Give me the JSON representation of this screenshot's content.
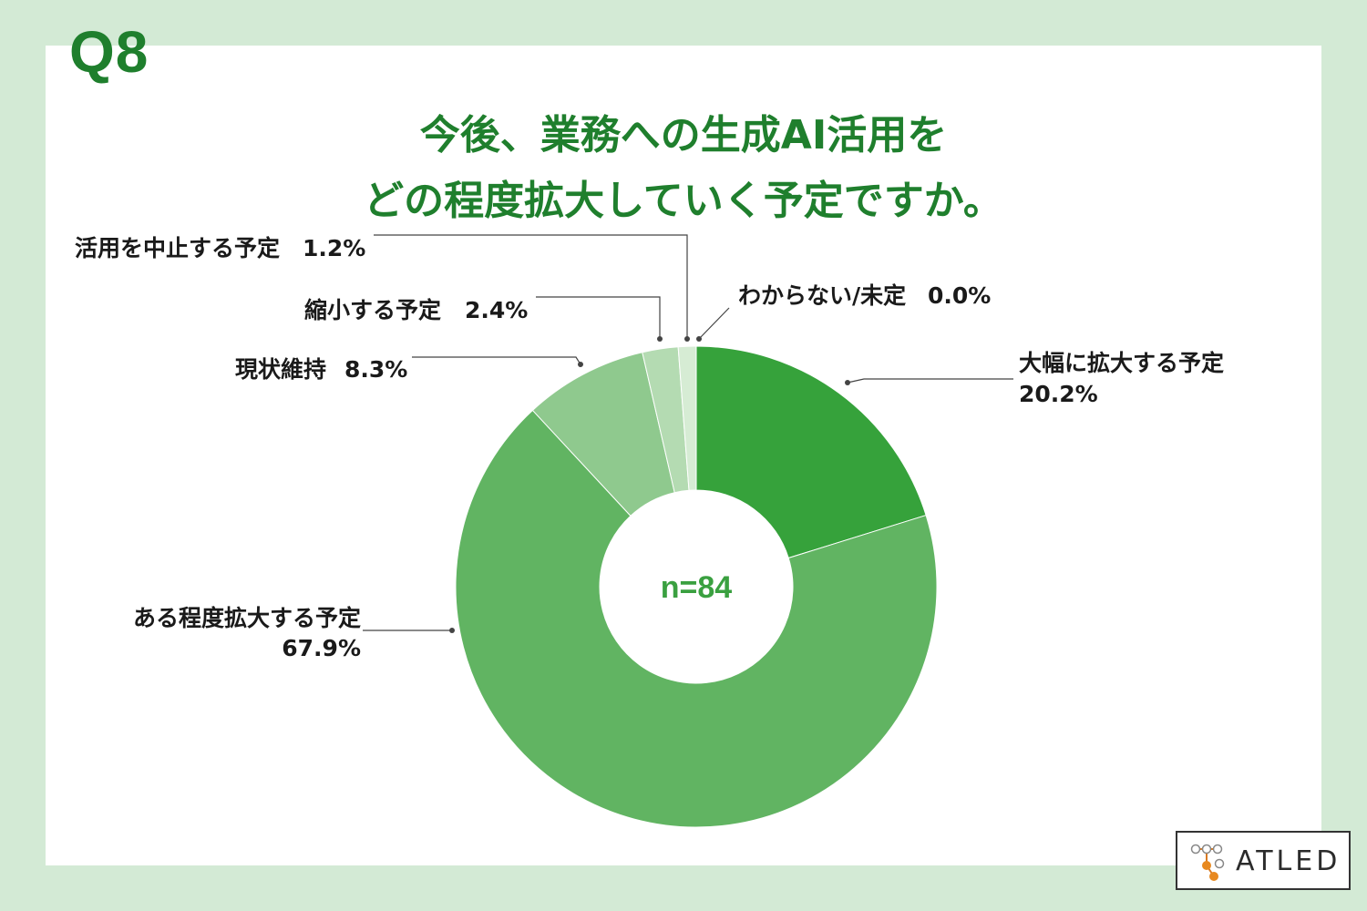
{
  "question_label": "Q8",
  "title_lines": [
    "今後、業務への生成AI活用を",
    "どの程度拡大していく予定ですか。"
  ],
  "colors": {
    "background": "#d3ead5",
    "panel": "#ffffff",
    "accent": "#1f7f2d",
    "slice_large_expand": "#36a23b",
    "slice_some_expand": "#61b462",
    "slice_maintain": "#8fc98e",
    "slice_reduce": "#b4dbb2",
    "slice_stop": "#d6ecd4"
  },
  "chart_data": {
    "type": "pie",
    "donut": true,
    "center_label": "n=84",
    "slices": [
      {
        "label": "大幅に拡大する予定",
        "value_label": "20.2%",
        "value": 20.2,
        "color": "#36a23b"
      },
      {
        "label": "ある程度拡大する予定",
        "value_label": "67.9%",
        "value": 67.9,
        "color": "#61b462"
      },
      {
        "label": "現状維持",
        "value_label": "8.3%",
        "value": 8.3,
        "color": "#8fc98e"
      },
      {
        "label": "縮小する予定",
        "value_label": "2.4%",
        "value": 2.4,
        "color": "#b4dbb2"
      },
      {
        "label": "活用を中止する予定",
        "value_label": "1.2%",
        "value": 1.2,
        "color": "#d6ecd4"
      },
      {
        "label": "わからない/未定",
        "value_label": "0.0%",
        "value": 0.0,
        "color": "#eeeeee"
      }
    ]
  },
  "logo": {
    "text": "ATLED"
  }
}
